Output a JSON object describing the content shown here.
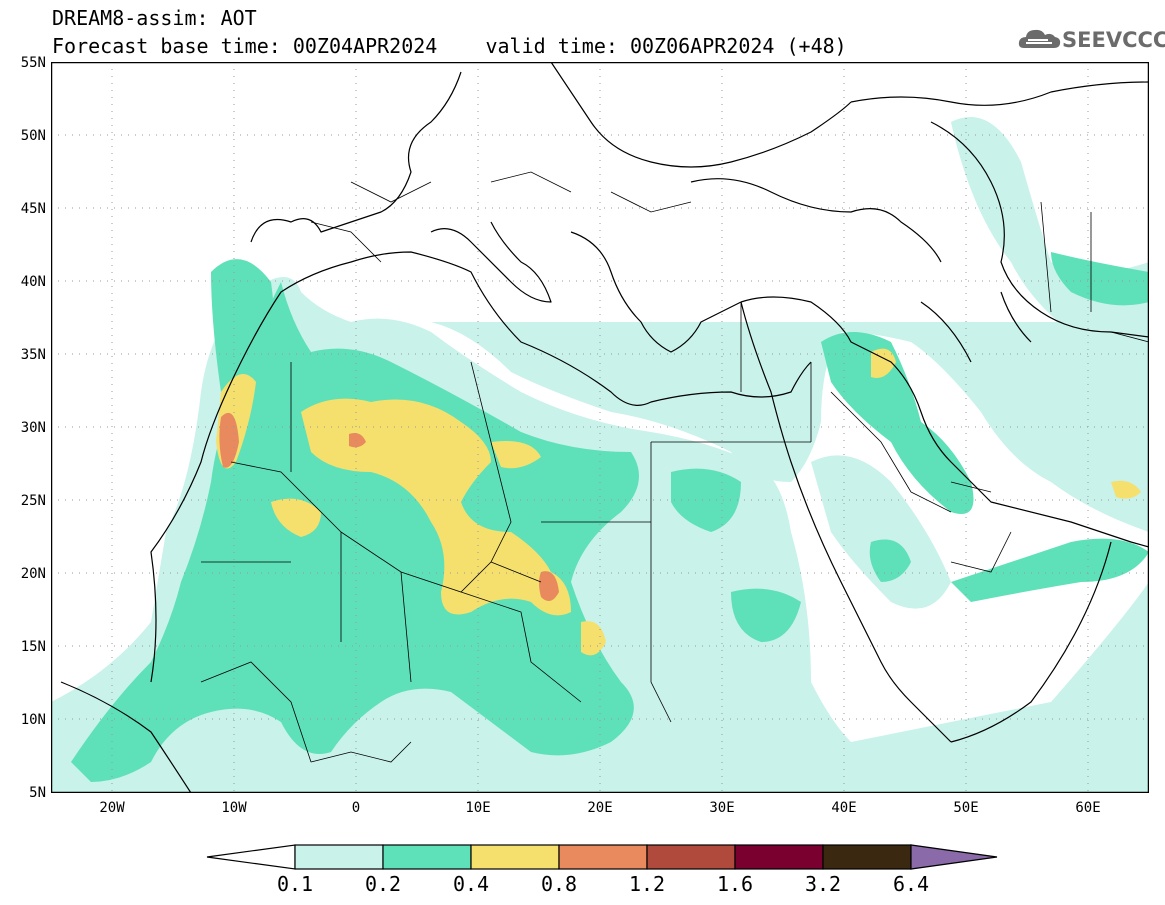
{
  "header": {
    "line1": "DREAM8-assim: AOT",
    "line2": "Forecast base time: 00Z04APR2024    valid time: 00Z06APR2024 (+48)"
  },
  "logo": {
    "text": "SEEVCCC",
    "icon": "cloud-icon"
  },
  "map": {
    "variable": "AOT",
    "lon_range": [
      -25,
      65
    ],
    "lat_range": [
      5,
      55
    ],
    "grid": true,
    "lat_labels": [
      "55N",
      "50N",
      "45N",
      "40N",
      "35N",
      "30N",
      "25N",
      "20N",
      "15N",
      "10N",
      "5N"
    ],
    "lon_labels": [
      "20W",
      "10W",
      "0",
      "10E",
      "20E",
      "30E",
      "40E",
      "50E",
      "60E"
    ]
  },
  "colorbar": {
    "labels": [
      "0.1",
      "0.2",
      "0.4",
      "0.8",
      "1.2",
      "1.6",
      "3.2",
      "6.4"
    ],
    "colors": [
      "#ffffff",
      "#c8f2ea",
      "#5ee0b8",
      "#f5e06e",
      "#e88a5e",
      "#b04a3c",
      "#7a0030",
      "#3a2810",
      "#8a6aa8"
    ]
  },
  "colors": {
    "aot_01_02": "#c8f2ea",
    "aot_02_04": "#5ee0b8",
    "aot_04_08": "#f5e06e",
    "aot_08_12": "#e88a5e",
    "aot_12_16": "#b04a3c"
  }
}
